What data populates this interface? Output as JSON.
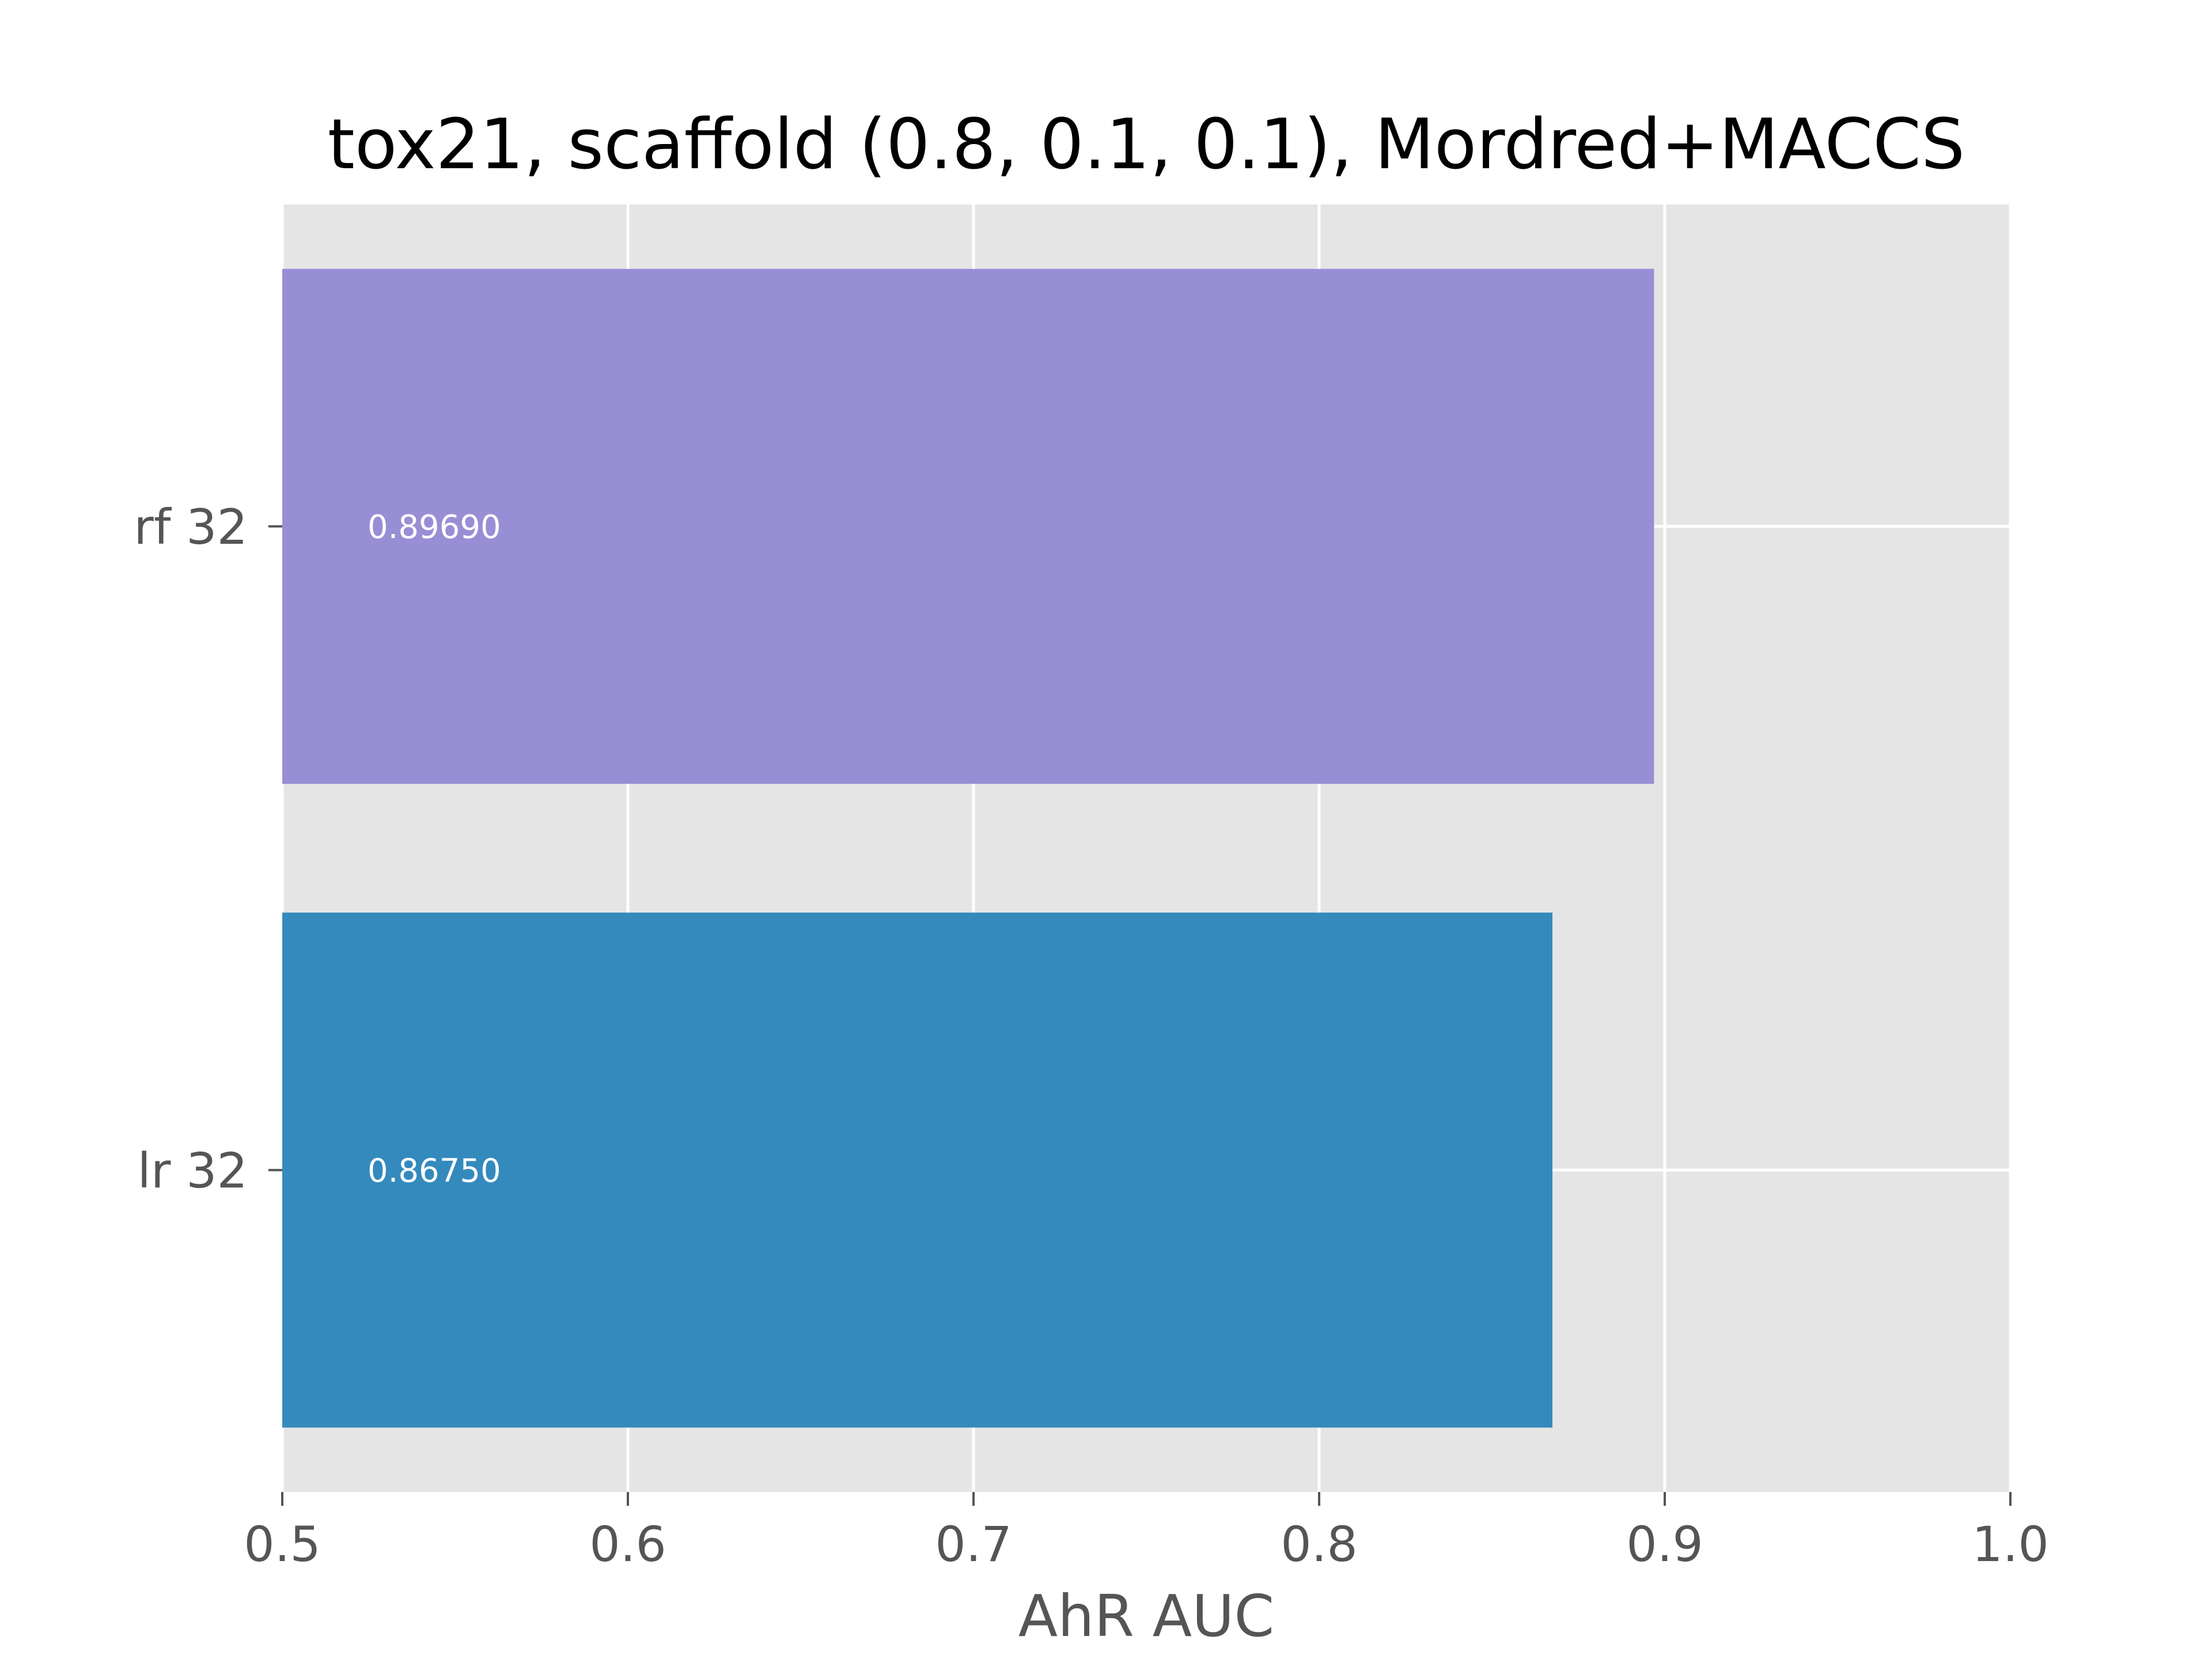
{
  "chart_data": {
    "type": "bar",
    "orientation": "horizontal",
    "title": "tox21, scaffold (0.8, 0.1, 0.1), Mordred+MACCS",
    "xlabel": "AhR AUC",
    "ylabel": "",
    "xlim": [
      0.5,
      1.0
    ],
    "x_ticks": [
      "0.5",
      "0.6",
      "0.7",
      "0.8",
      "0.9",
      "1.0"
    ],
    "categories": [
      "lr 32",
      "rf 32"
    ],
    "values": [
      0.8675,
      0.8969
    ],
    "value_labels": [
      "0.86750",
      "0.89690"
    ],
    "bar_colors": [
      "#348abd",
      "#988ed5"
    ],
    "grid": true,
    "background_color": "#e5e5e5",
    "grid_color": "#ffffff"
  }
}
